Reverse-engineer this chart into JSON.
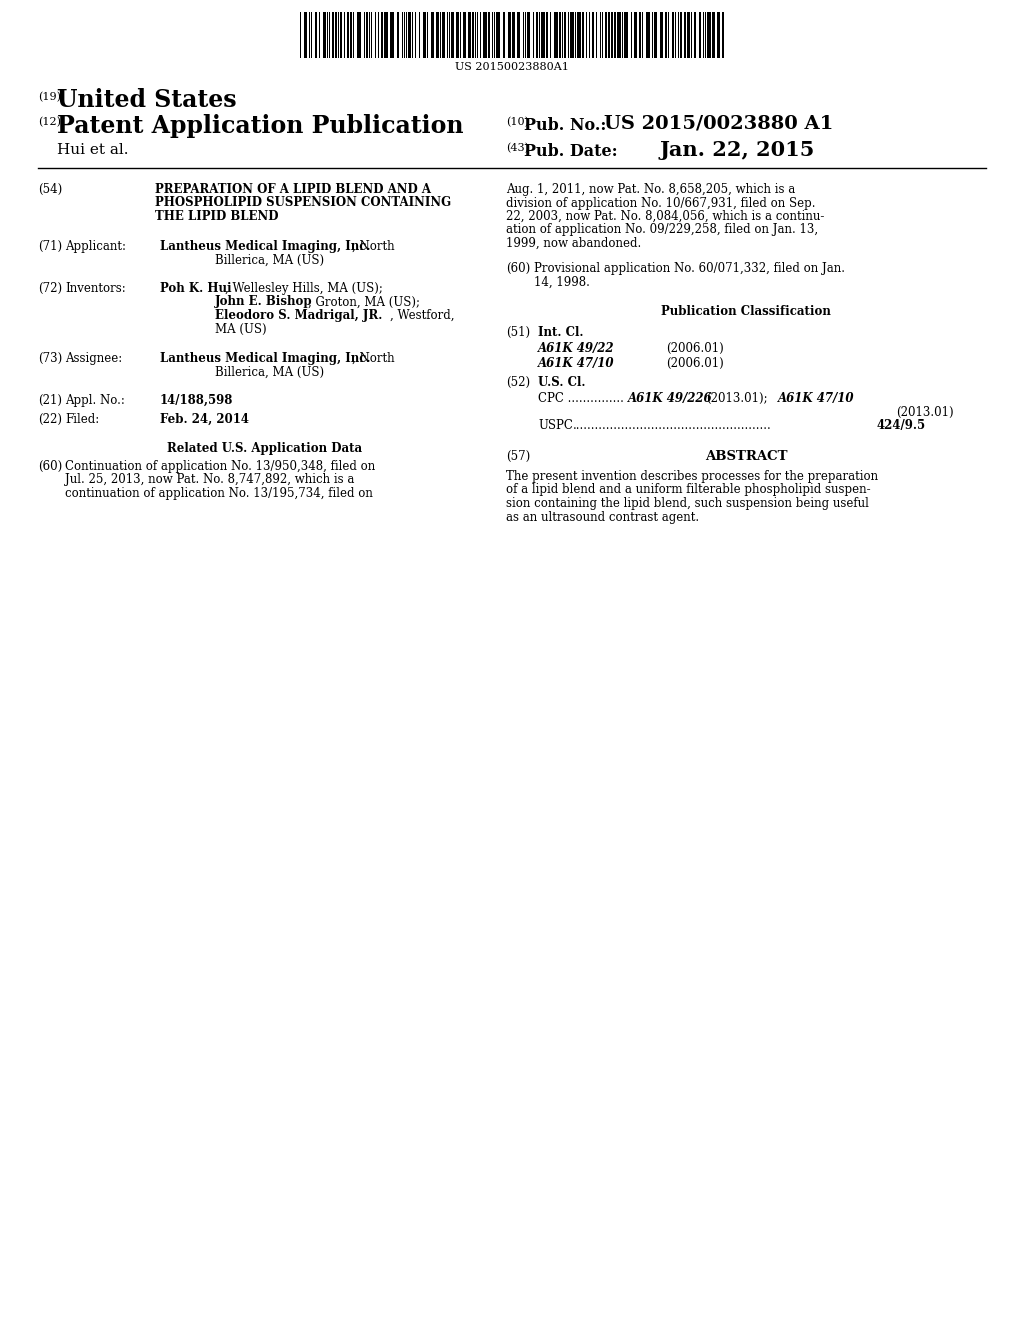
{
  "background_color": "#ffffff",
  "barcode_text": "US 20150023880A1",
  "patent_number": "US 2015/0023880 A1",
  "pub_date": "Jan. 22, 2015",
  "country": "United States",
  "doc_type": "Patent Application Publication",
  "num_19": "(19)",
  "num_12": "(12)",
  "num_10": "(10)",
  "num_43": "(43)",
  "author": "Hui et al.",
  "pub_no_label": "Pub. No.:",
  "pub_date_label": "Pub. Date:"
}
